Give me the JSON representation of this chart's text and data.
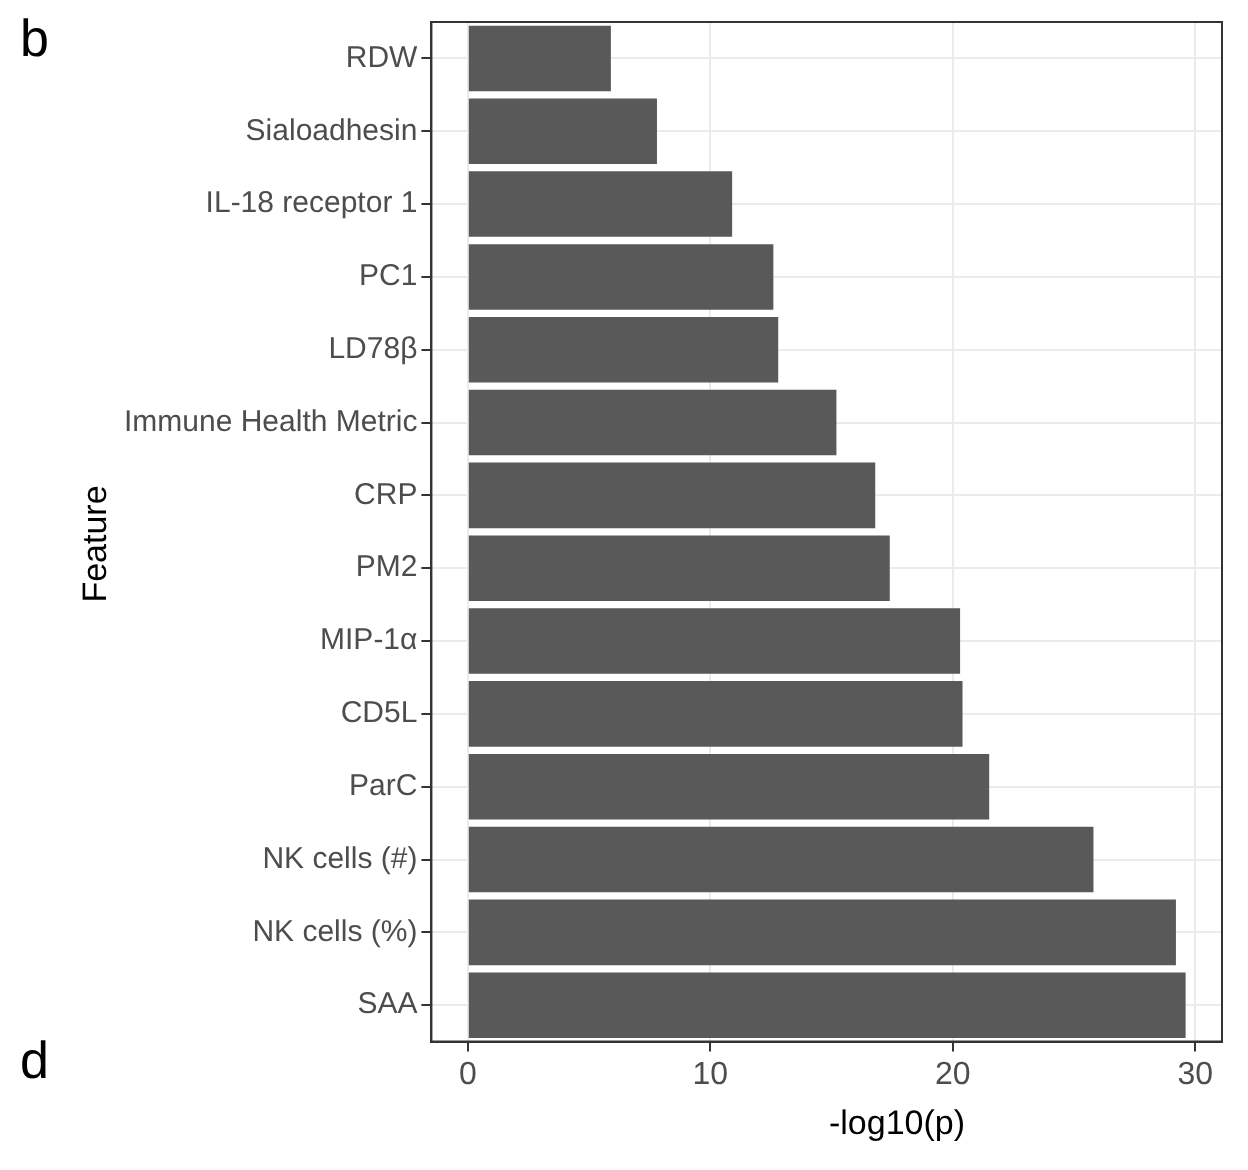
{
  "chart_data": {
    "type": "bar",
    "orientation": "horizontal",
    "categories": [
      "RDW",
      "Sialoadhesin",
      "IL-18 receptor 1",
      "PC1",
      "LD78β",
      "Immune Health Metric",
      "CRP",
      "PM2",
      "MIP-1α",
      "CD5L",
      "ParC",
      "NK cells (#)",
      "NK cells (%)",
      "SAA"
    ],
    "values": [
      5.9,
      7.8,
      10.9,
      12.6,
      12.8,
      15.2,
      16.8,
      17.4,
      20.3,
      20.4,
      21.5,
      25.8,
      29.2,
      29.6
    ],
    "color": "#595959",
    "xlabel": "-log10(p)",
    "ylabel": "Feature",
    "xlim": [
      -1.5,
      31.1
    ],
    "xticks": [
      0,
      10,
      20,
      30
    ],
    "grid": true,
    "legend": false,
    "annotations": [
      "b",
      "d"
    ]
  }
}
